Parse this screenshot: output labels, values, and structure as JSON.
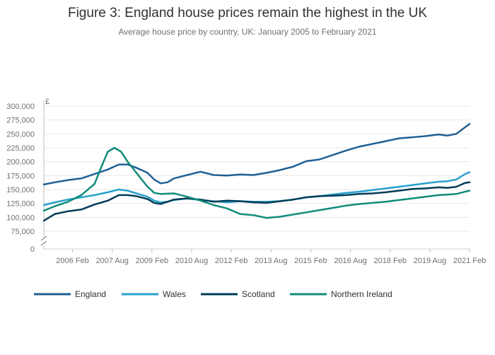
{
  "header": {
    "title": "Figure 3: England house prices remain the highest in the UK",
    "subtitle": "Average house price by country, UK: January 2005 to February 2021"
  },
  "chart_data": {
    "type": "line",
    "title": "Figure 3: England house prices remain the highest in the UK",
    "subtitle": "Average house price by country, UK: January 2005 to February 2021",
    "ylabel": "£",
    "xlabel": "",
    "ylim": [
      75000,
      300000
    ],
    "y_axis_break": true,
    "y_ticks": [
      0,
      75000,
      100000,
      125000,
      150000,
      175000,
      200000,
      225000,
      250000,
      275000,
      300000
    ],
    "y_tick_labels": [
      "0",
      "75,000",
      "100,000",
      "125,000",
      "150,000",
      "175,000",
      "200,000",
      "225,000",
      "250,000",
      "275,000",
      "300,000"
    ],
    "x_range": [
      "2005-01",
      "2021-02"
    ],
    "x_ticks": [
      "2006-02",
      "2007-08",
      "2009-02",
      "2010-08",
      "2012-02",
      "2013-08",
      "2015-02",
      "2016-08",
      "2018-02",
      "2019-08",
      "2021-02"
    ],
    "x_tick_labels": [
      "2006 Feb",
      "2007 Aug",
      "2009 Feb",
      "2010 Aug",
      "2012 Feb",
      "2013 Aug",
      "2015 Feb",
      "2016 Aug",
      "2018 Feb",
      "2019 Aug",
      "2021 Feb"
    ],
    "grid": true,
    "legend_position": "bottom",
    "series": [
      {
        "name": "England",
        "color": "#206095",
        "points": [
          [
            "2005-01",
            159000
          ],
          [
            "2005-06",
            163000
          ],
          [
            "2005-12",
            167000
          ],
          [
            "2006-06",
            170000
          ],
          [
            "2006-12",
            178000
          ],
          [
            "2007-06",
            186000
          ],
          [
            "2007-11",
            195000
          ],
          [
            "2008-03",
            195000
          ],
          [
            "2008-07",
            189000
          ],
          [
            "2008-12",
            180000
          ],
          [
            "2009-03",
            168000
          ],
          [
            "2009-06",
            161000
          ],
          [
            "2009-09",
            163000
          ],
          [
            "2009-12",
            170000
          ],
          [
            "2010-06",
            176000
          ],
          [
            "2010-12",
            182000
          ],
          [
            "2011-06",
            176000
          ],
          [
            "2011-12",
            175000
          ],
          [
            "2012-06",
            177000
          ],
          [
            "2012-12",
            176000
          ],
          [
            "2013-06",
            180000
          ],
          [
            "2013-12",
            185000
          ],
          [
            "2014-06",
            191000
          ],
          [
            "2014-12",
            201000
          ],
          [
            "2015-06",
            204000
          ],
          [
            "2015-12",
            212000
          ],
          [
            "2016-06",
            220000
          ],
          [
            "2016-12",
            227000
          ],
          [
            "2017-06",
            232000
          ],
          [
            "2017-12",
            237000
          ],
          [
            "2018-06",
            242000
          ],
          [
            "2018-12",
            244000
          ],
          [
            "2019-06",
            246000
          ],
          [
            "2019-12",
            249000
          ],
          [
            "2020-04",
            247000
          ],
          [
            "2020-08",
            250000
          ],
          [
            "2020-12",
            262000
          ],
          [
            "2021-02",
            268000
          ]
        ]
      },
      {
        "name": "Wales",
        "color": "#27a0cc",
        "points": [
          [
            "2005-01",
            122000
          ],
          [
            "2005-06",
            127000
          ],
          [
            "2005-12",
            132000
          ],
          [
            "2006-06",
            136000
          ],
          [
            "2006-12",
            140000
          ],
          [
            "2007-06",
            145000
          ],
          [
            "2007-11",
            150000
          ],
          [
            "2008-03",
            148000
          ],
          [
            "2008-07",
            143000
          ],
          [
            "2008-12",
            137000
          ],
          [
            "2009-03",
            130000
          ],
          [
            "2009-06",
            127000
          ],
          [
            "2009-09",
            128000
          ],
          [
            "2009-12",
            131000
          ],
          [
            "2010-06",
            134000
          ],
          [
            "2010-12",
            131000
          ],
          [
            "2011-06",
            129000
          ],
          [
            "2011-12",
            127000
          ],
          [
            "2012-06",
            129000
          ],
          [
            "2012-12",
            128000
          ],
          [
            "2013-06",
            128000
          ],
          [
            "2013-12",
            129000
          ],
          [
            "2014-06",
            132000
          ],
          [
            "2014-12",
            136000
          ],
          [
            "2015-06",
            138000
          ],
          [
            "2015-12",
            141000
          ],
          [
            "2016-06",
            144000
          ],
          [
            "2016-12",
            146000
          ],
          [
            "2017-06",
            149000
          ],
          [
            "2017-12",
            152000
          ],
          [
            "2018-06",
            155000
          ],
          [
            "2018-12",
            158000
          ],
          [
            "2019-06",
            161000
          ],
          [
            "2019-12",
            164000
          ],
          [
            "2020-04",
            165000
          ],
          [
            "2020-08",
            168000
          ],
          [
            "2020-12",
            178000
          ],
          [
            "2021-02",
            181000
          ]
        ]
      },
      {
        "name": "Scotland",
        "color": "#003c57",
        "points": [
          [
            "2005-01",
            94000
          ],
          [
            "2005-06",
            106000
          ],
          [
            "2005-12",
            111000
          ],
          [
            "2006-06",
            114000
          ],
          [
            "2006-12",
            123000
          ],
          [
            "2007-06",
            130000
          ],
          [
            "2007-11",
            140000
          ],
          [
            "2008-03",
            140000
          ],
          [
            "2008-07",
            138000
          ],
          [
            "2008-12",
            133000
          ],
          [
            "2009-03",
            126000
          ],
          [
            "2009-06",
            124000
          ],
          [
            "2009-09",
            128000
          ],
          [
            "2009-12",
            132000
          ],
          [
            "2010-06",
            134000
          ],
          [
            "2010-12",
            132000
          ],
          [
            "2011-06",
            128000
          ],
          [
            "2011-12",
            130000
          ],
          [
            "2012-06",
            129000
          ],
          [
            "2012-12",
            127000
          ],
          [
            "2013-06",
            126000
          ],
          [
            "2013-12",
            129000
          ],
          [
            "2014-06",
            132000
          ],
          [
            "2014-12",
            136000
          ],
          [
            "2015-06",
            138000
          ],
          [
            "2015-12",
            139000
          ],
          [
            "2016-06",
            140000
          ],
          [
            "2016-12",
            142000
          ],
          [
            "2017-06",
            143000
          ],
          [
            "2017-12",
            145000
          ],
          [
            "2018-06",
            148000
          ],
          [
            "2018-12",
            151000
          ],
          [
            "2019-06",
            152000
          ],
          [
            "2019-12",
            154000
          ],
          [
            "2020-04",
            153000
          ],
          [
            "2020-08",
            155000
          ],
          [
            "2020-12",
            162000
          ],
          [
            "2021-02",
            163000
          ]
        ]
      },
      {
        "name": "Northern Ireland",
        "color": "#118c7b",
        "points": [
          [
            "2005-01",
            112000
          ],
          [
            "2005-06",
            120000
          ],
          [
            "2005-12",
            128000
          ],
          [
            "2006-06",
            140000
          ],
          [
            "2006-12",
            160000
          ],
          [
            "2007-03",
            190000
          ],
          [
            "2007-06",
            218000
          ],
          [
            "2007-09",
            225000
          ],
          [
            "2007-12",
            218000
          ],
          [
            "2008-03",
            200000
          ],
          [
            "2008-06",
            185000
          ],
          [
            "2008-09",
            170000
          ],
          [
            "2008-12",
            155000
          ],
          [
            "2009-03",
            144000
          ],
          [
            "2009-06",
            142000
          ],
          [
            "2009-12",
            143000
          ],
          [
            "2010-06",
            137000
          ],
          [
            "2010-12",
            130000
          ],
          [
            "2011-06",
            122000
          ],
          [
            "2011-12",
            116000
          ],
          [
            "2012-06",
            106000
          ],
          [
            "2012-12",
            104000
          ],
          [
            "2013-06",
            99000
          ],
          [
            "2013-12",
            101000
          ],
          [
            "2014-06",
            105000
          ],
          [
            "2014-12",
            109000
          ],
          [
            "2015-06",
            113000
          ],
          [
            "2015-12",
            117000
          ],
          [
            "2016-06",
            121000
          ],
          [
            "2016-12",
            124000
          ],
          [
            "2017-06",
            126000
          ],
          [
            "2017-12",
            128000
          ],
          [
            "2018-06",
            131000
          ],
          [
            "2018-12",
            134000
          ],
          [
            "2019-06",
            137000
          ],
          [
            "2019-12",
            140000
          ],
          [
            "2020-04",
            141000
          ],
          [
            "2020-08",
            142000
          ],
          [
            "2020-12",
            146000
          ],
          [
            "2021-02",
            148000
          ]
        ]
      }
    ]
  }
}
